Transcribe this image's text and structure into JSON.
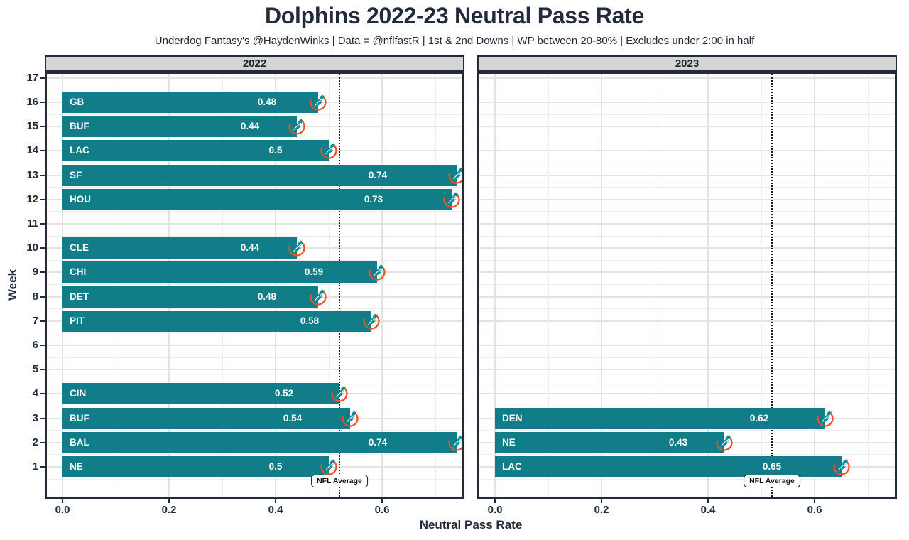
{
  "header": {
    "title": "Dolphins 2022-23 Neutral Pass Rate",
    "subtitle": "Underdog Fantasy's @HaydenWinks | Data = @nflfastR | 1st & 2nd Downs | WP between 20-80% | Excludes under 2:00 in half"
  },
  "colors": {
    "bar": "#117d88",
    "dark_text": "#232b3a",
    "strip_bg": "#d5d5d5",
    "panel_bg": "#ffffff",
    "grid_major": "#e3e3e3",
    "grid_minor": "#eeeeee",
    "bar_label_text": "#ffffff",
    "nfl_line": "#1b1b1b",
    "logo_teal": "#008E97",
    "logo_orange": "#F04E23"
  },
  "chart_data": {
    "type": "bar",
    "orientation": "horizontal",
    "title": "Dolphins 2022-23 Neutral Pass Rate",
    "subtitle": "Underdog Fantasy's @HaydenWinks | Data = @nflfastR | 1st & 2nd Downs | WP between 20-80% | Excludes under 2:00 in half",
    "xlabel": "Neutral Pass Rate",
    "ylabel": "Week",
    "xlim": [
      0,
      0.75
    ],
    "ylim": [
      1,
      17
    ],
    "grid": "on",
    "legend": "none",
    "x_tick_values": [
      0.0,
      0.2,
      0.4,
      0.6
    ],
    "x_tick_labels": [
      "0.0",
      "0.2",
      "0.4",
      "0.6"
    ],
    "x_minor_gridlines": [
      0.1,
      0.3,
      0.5,
      0.7
    ],
    "week_ticks": [
      "17",
      "16",
      "15",
      "14",
      "13",
      "12",
      "11",
      "10",
      "9",
      "8",
      "7",
      "6",
      "5",
      "4",
      "3",
      "2",
      "1"
    ],
    "reference_line": {
      "value": 0.52,
      "label": "NFL Average",
      "style": "dotted"
    },
    "bar_icon": "miami-dolphins-logo",
    "facets": [
      {
        "label": "2022",
        "bars": [
          {
            "week": 16,
            "opponent": "GB",
            "value": 0.48,
            "value_label": "0.48"
          },
          {
            "week": 15,
            "opponent": "BUF",
            "value": 0.44,
            "value_label": "0.44"
          },
          {
            "week": 14,
            "opponent": "LAC",
            "value": 0.5,
            "value_label": "0.5"
          },
          {
            "week": 13,
            "opponent": "SF",
            "value": 0.74,
            "value_label": "0.74"
          },
          {
            "week": 12,
            "opponent": "HOU",
            "value": 0.73,
            "value_label": "0.73"
          },
          {
            "week": 10,
            "opponent": "CLE",
            "value": 0.44,
            "value_label": "0.44"
          },
          {
            "week": 9,
            "opponent": "CHI",
            "value": 0.59,
            "value_label": "0.59"
          },
          {
            "week": 8,
            "opponent": "DET",
            "value": 0.48,
            "value_label": "0.48"
          },
          {
            "week": 7,
            "opponent": "PIT",
            "value": 0.58,
            "value_label": "0.58"
          },
          {
            "week": 4,
            "opponent": "CIN",
            "value": 0.52,
            "value_label": "0.52"
          },
          {
            "week": 3,
            "opponent": "BUF",
            "value": 0.54,
            "value_label": "0.54"
          },
          {
            "week": 2,
            "opponent": "BAL",
            "value": 0.74,
            "value_label": "0.74"
          },
          {
            "week": 1,
            "opponent": "NE",
            "value": 0.5,
            "value_label": "0.5"
          }
        ]
      },
      {
        "label": "2023",
        "bars": [
          {
            "week": 3,
            "opponent": "DEN",
            "value": 0.62,
            "value_label": "0.62"
          },
          {
            "week": 2,
            "opponent": "NE",
            "value": 0.43,
            "value_label": "0.43"
          },
          {
            "week": 1,
            "opponent": "LAC",
            "value": 0.65,
            "value_label": "0.65"
          }
        ]
      }
    ]
  }
}
